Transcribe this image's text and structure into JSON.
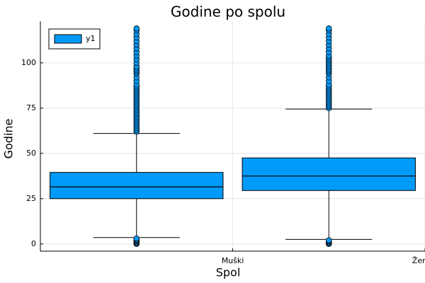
{
  "chart_data": {
    "type": "box",
    "title": "Godine po spolu",
    "xlabel": "Spol",
    "ylabel": "Godine",
    "categories": [
      "Muški",
      "Ženski"
    ],
    "ylim": [
      -4,
      123
    ],
    "yticks": [
      0,
      25,
      50,
      75,
      100
    ],
    "grid": true,
    "legend": {
      "position": "top-left",
      "entries": [
        "y1"
      ]
    },
    "series": [
      {
        "name": "y1",
        "color": "#009AFA",
        "boxes": [
          {
            "category": "Muški",
            "whisker_low": 3.5,
            "q1": 25,
            "median": 31.5,
            "q3": 39.5,
            "whisker_high": 61,
            "outliers_low": [
              0,
              0.5,
              1,
              1.5,
              2,
              2.5,
              3
            ],
            "outliers_high": [
              62,
              63,
              64,
              65,
              66,
              67,
              68,
              69,
              70,
              71,
              72,
              73,
              74,
              75,
              76,
              77,
              78,
              79,
              80,
              81,
              82,
              83,
              84,
              85,
              86,
              87,
              88,
              90,
              92,
              94,
              95,
              96,
              97,
              98,
              100,
              102,
              104,
              106,
              108,
              110,
              112,
              114,
              116,
              118,
              119
            ]
          },
          {
            "category": "Ženski",
            "whisker_low": 2.5,
            "q1": 29.5,
            "median": 37.5,
            "q3": 47.5,
            "whisker_high": 74.5,
            "outliers_low": [
              0,
              0.5,
              1,
              1.5,
              2
            ],
            "outliers_high": [
              75,
              76,
              77,
              78,
              79,
              80,
              81,
              82,
              83,
              84,
              85,
              86,
              87,
              88,
              90,
              92,
              94,
              95,
              96,
              97,
              98,
              99,
              100,
              101,
              102,
              103,
              104,
              106,
              108,
              110,
              112,
              114,
              116,
              118,
              119
            ]
          }
        ]
      }
    ]
  }
}
